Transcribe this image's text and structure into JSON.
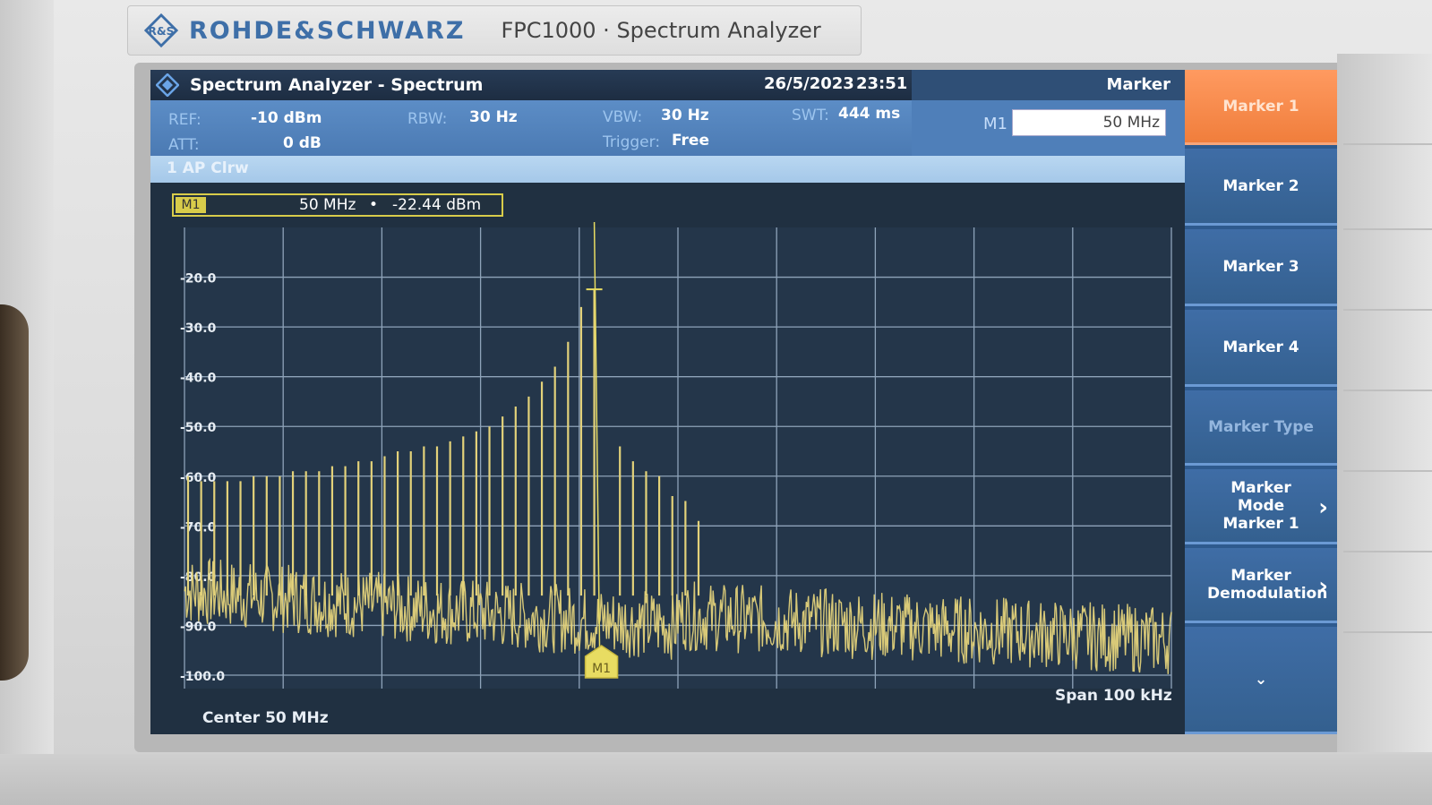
{
  "device": {
    "brand": "ROHDE&SCHWARZ",
    "model": "FPC1000 · Spectrum Analyzer"
  },
  "titlebar": {
    "title": "Spectrum Analyzer - Spectrum",
    "date": "26/5/2023",
    "time": "23:51",
    "panel_title": "Marker"
  },
  "settings": {
    "ref_label": "REF:",
    "ref_value": "-10 dBm",
    "att_label": "ATT:",
    "att_value": "0 dB",
    "rbw_label": "RBW:",
    "rbw_value": "30 Hz",
    "vbw_label": "VBW:",
    "vbw_value": "30 Hz",
    "trigger_label": "Trigger:",
    "trigger_value": "Free",
    "swt_label": "SWT:",
    "swt_value": "444 ms",
    "m1_label": "M1",
    "m1_value": "50 MHz"
  },
  "trace": {
    "label": "1 AP Clrw"
  },
  "marker_readout": {
    "tag": "M1",
    "frequency": "50 MHz",
    "dot": "•",
    "level": "-22.44 dBm"
  },
  "diagram": {
    "center": "Center 50 MHz",
    "span": "Span 100 kHz",
    "marker_flag": "M1"
  },
  "chart_data": {
    "type": "line",
    "xlabel": "",
    "ylabel": "",
    "ylim": [
      -100,
      -10
    ],
    "yticks": [
      "-20.0",
      "-30.0",
      "-40.0",
      "-50.0",
      "-60.0",
      "-70.0",
      "-80.0",
      "-90.0",
      "-100.0"
    ],
    "grid": true,
    "trace_color": "#e3d27a",
    "noise_floor_left_dBm": -83,
    "noise_floor_right_dBm": -93,
    "spur_peaks_dBm": [
      -60,
      -61,
      -61,
      -61,
      -61,
      -60,
      -60,
      -60,
      -59,
      -59,
      -59,
      -58,
      -58,
      -57,
      -57,
      -56,
      -55,
      -55,
      -54,
      -54,
      -53,
      -52,
      -51,
      -50,
      -48,
      -46,
      -44,
      -41,
      -38,
      -33,
      -26,
      -22.44,
      -54,
      -57,
      -59,
      -60,
      -64,
      -65,
      -69
    ],
    "marker": {
      "label": "M1",
      "level_dBm": -22.44
    }
  },
  "softkeys": [
    {
      "label": "Marker 1",
      "state": "active"
    },
    {
      "label": "Marker 2",
      "state": "normal"
    },
    {
      "label": "Marker 3",
      "state": "normal"
    },
    {
      "label": "Marker 4",
      "state": "normal"
    },
    {
      "label": "Marker Type",
      "state": "disabled"
    },
    {
      "label": "Marker Mode Marker 1",
      "state": "normal"
    },
    {
      "label": "Marker Demodulation",
      "state": "normal"
    },
    {
      "label": "⌄",
      "state": "normal"
    }
  ]
}
